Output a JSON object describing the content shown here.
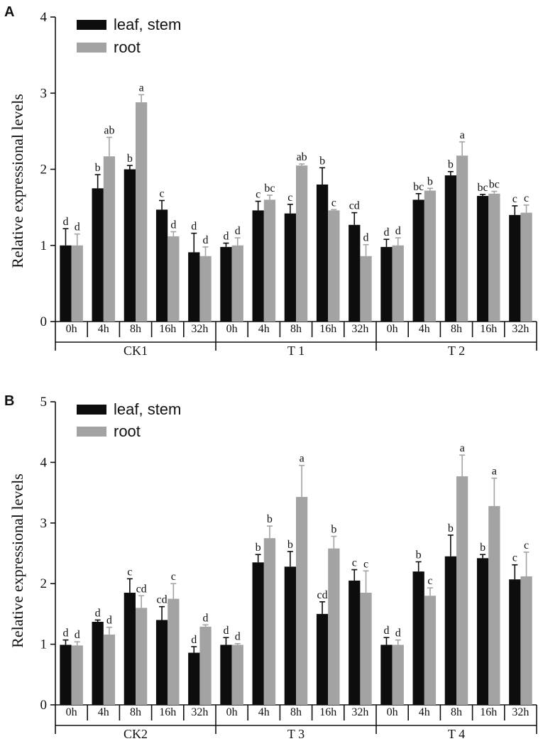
{
  "chart_data": [
    {
      "panel": "A",
      "type": "bar",
      "ylabel": "Relative expressional levels",
      "ylim": [
        0,
        4
      ],
      "yticks": [
        0,
        1,
        2,
        3,
        4
      ],
      "legend": [
        "leaf, stem",
        "root"
      ],
      "groups": [
        {
          "name": "CK1",
          "timepoints": [
            "0h",
            "4h",
            "8h",
            "16h",
            "32h"
          ],
          "leaf_stem": [
            1.0,
            1.75,
            2.0,
            1.47,
            0.91
          ],
          "leaf_stem_err": [
            0.22,
            0.18,
            0.05,
            0.12,
            0.25
          ],
          "leaf_stem_sig": [
            "d",
            "b",
            "b",
            "c",
            "d"
          ],
          "root": [
            1.0,
            2.17,
            2.88,
            1.12,
            0.86
          ],
          "root_err": [
            0.15,
            0.25,
            0.1,
            0.06,
            0.12
          ],
          "root_sig": [
            "d",
            "ab",
            "a",
            "d",
            "d"
          ]
        },
        {
          "name": "T 1",
          "timepoints": [
            "0h",
            "4h",
            "8h",
            "16h",
            "32h"
          ],
          "leaf_stem": [
            0.98,
            1.46,
            1.42,
            1.8,
            1.27
          ],
          "leaf_stem_err": [
            0.05,
            0.12,
            0.12,
            0.22,
            0.16
          ],
          "leaf_stem_sig": [
            "d",
            "c",
            "c",
            "b",
            "cd"
          ],
          "root": [
            1.0,
            1.6,
            2.05,
            1.46,
            0.86
          ],
          "root_err": [
            0.1,
            0.06,
            0.02,
            0.01,
            0.15
          ],
          "root_sig": [
            "d",
            "bc",
            "ab",
            "c",
            "d"
          ]
        },
        {
          "name": "T 2",
          "timepoints": [
            "0h",
            "4h",
            "8h",
            "16h",
            "32h"
          ],
          "leaf_stem": [
            0.98,
            1.6,
            1.92,
            1.65,
            1.4
          ],
          "leaf_stem_err": [
            0.1,
            0.08,
            0.05,
            0.02,
            0.12
          ],
          "leaf_stem_sig": [
            "d",
            "bc",
            "b",
            "bc",
            "c"
          ],
          "root": [
            1.0,
            1.72,
            2.18,
            1.68,
            1.43
          ],
          "root_err": [
            0.1,
            0.03,
            0.18,
            0.03,
            0.1
          ],
          "root_sig": [
            "d",
            "b",
            "a",
            "bc",
            "c"
          ]
        }
      ]
    },
    {
      "panel": "B",
      "type": "bar",
      "ylabel": "Relative expressional levels",
      "ylim": [
        0,
        5
      ],
      "yticks": [
        0,
        1,
        2,
        3,
        4,
        5
      ],
      "legend": [
        "leaf, stem",
        "root"
      ],
      "groups": [
        {
          "name": "CK2",
          "timepoints": [
            "0h",
            "4h",
            "8h",
            "16h",
            "32h"
          ],
          "leaf_stem": [
            0.99,
            1.37,
            1.85,
            1.4,
            0.86
          ],
          "leaf_stem_err": [
            0.08,
            0.03,
            0.23,
            0.22,
            0.1
          ],
          "leaf_stem_sig": [
            "d",
            "d",
            "c",
            "cd",
            "d"
          ],
          "root": [
            0.98,
            1.16,
            1.6,
            1.75,
            1.29
          ],
          "root_err": [
            0.06,
            0.12,
            0.2,
            0.25,
            0.03
          ],
          "root_sig": [
            "d",
            "d",
            "cd",
            "c",
            "d"
          ]
        },
        {
          "name": "T 3",
          "timepoints": [
            "0h",
            "4h",
            "8h",
            "16h",
            "32h"
          ],
          "leaf_stem": [
            0.99,
            2.35,
            2.28,
            1.5,
            2.05
          ],
          "leaf_stem_err": [
            0.12,
            0.13,
            0.25,
            0.2,
            0.18
          ],
          "leaf_stem_sig": [
            "d",
            "b",
            "b",
            "cd",
            "c"
          ],
          "root": [
            0.99,
            2.75,
            3.43,
            2.58,
            1.85
          ],
          "root_err": [
            0.02,
            0.2,
            0.52,
            0.2,
            0.36
          ],
          "root_sig": [
            "d",
            "b",
            "a",
            "b",
            "c"
          ]
        },
        {
          "name": "T 4",
          "timepoints": [
            "0h",
            "4h",
            "8h",
            "16h",
            "32h"
          ],
          "leaf_stem": [
            0.99,
            2.2,
            2.45,
            2.42,
            2.07
          ],
          "leaf_stem_err": [
            0.12,
            0.16,
            0.35,
            0.06,
            0.24
          ],
          "leaf_stem_sig": [
            "d",
            "b",
            "b",
            "b",
            "c"
          ],
          "root": [
            0.99,
            1.8,
            3.77,
            3.28,
            2.12
          ],
          "root_err": [
            0.08,
            0.13,
            0.35,
            0.46,
            0.4
          ],
          "root_sig": [
            "d",
            "c",
            "a",
            "a",
            "c"
          ]
        }
      ]
    }
  ],
  "colors": {
    "leaf_stem": "#0d0d0d",
    "root": "#a3a3a3",
    "axis": "#111111"
  }
}
